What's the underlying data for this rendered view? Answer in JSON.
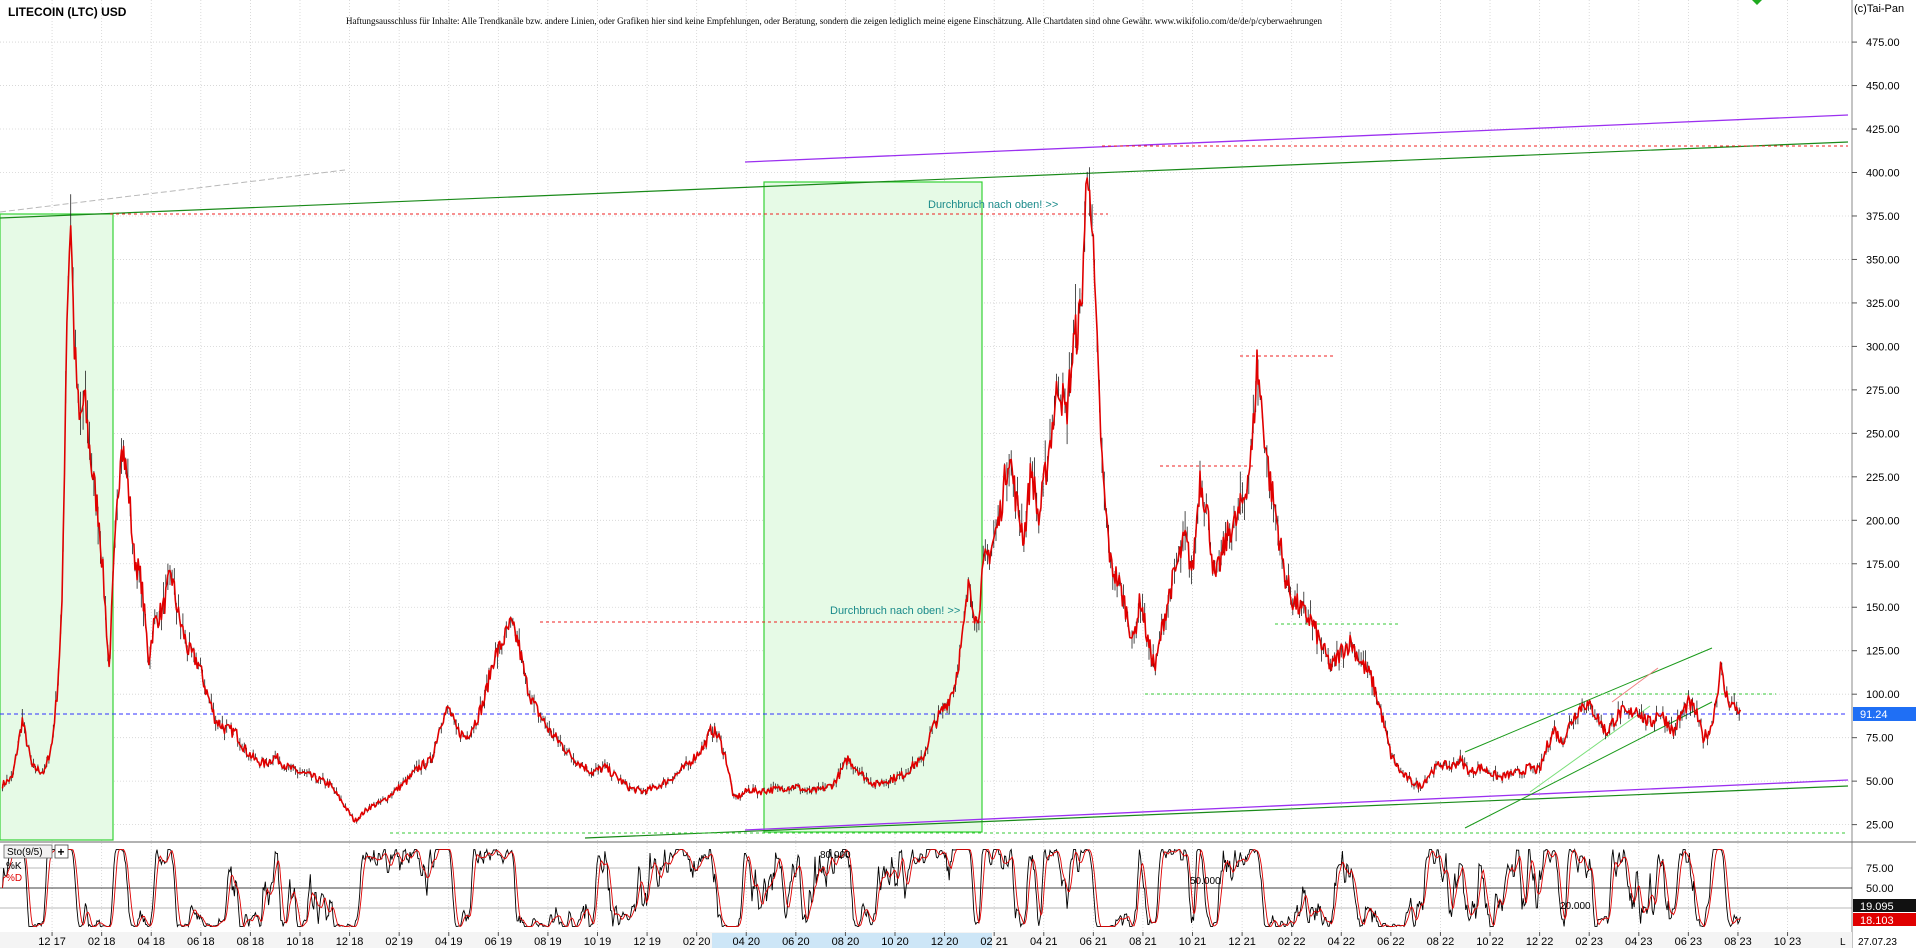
{
  "header": {
    "title": "LITECOIN (LTC) USD",
    "disclaimer": "Haftungsausschluss für Inhalte: Alle Trendkanäle bzw. andere Linien, oder Grafiken hier sind keine Empfehlungen, oder Beratung, sondern die zeigen lediglich meine eigene Einschätzung. Alle Chartdaten sind ohne Gewähr.  www.wikifolio.com/de/de/p/cyberwaehrungen",
    "copyright": "(c)Tai-Pan"
  },
  "chart_data": [
    {
      "type": "line",
      "title": "LITECOIN (LTC) USD",
      "y_ticks": [
        25,
        50,
        75,
        100,
        125,
        150,
        175,
        200,
        225,
        250,
        275,
        300,
        325,
        350,
        375,
        400,
        425,
        450,
        475
      ],
      "y_tick_labels": [
        "25.00",
        "50.00",
        "75.00",
        "100.00",
        "125.00",
        "150.00",
        "175.00",
        "200.00",
        "225.00",
        "250.00",
        "275.00",
        "300.00",
        "325.00",
        "350.00",
        "375.00",
        "400.00",
        "425.00",
        "450.00",
        "475.00"
      ],
      "ylim": [
        15,
        490
      ],
      "x_tick_labels": [
        "12 17",
        "02 18",
        "04 18",
        "06 18",
        "08 18",
        "10 18",
        "12 18",
        "02 19",
        "04 19",
        "06 19",
        "08 19",
        "10 19",
        "12 19",
        "02 20",
        "04 20",
        "06 20",
        "08 20",
        "10 20",
        "12 20",
        "02 21",
        "04 21",
        "06 21",
        "08 21",
        "10 21",
        "12 21",
        "02 22",
        "04 22",
        "06 22",
        "08 22",
        "10 22",
        "12 22",
        "02 23",
        "04 23",
        "06 23",
        "08 23",
        "10 23"
      ],
      "x_tick_index": [
        0,
        2,
        4,
        6,
        8,
        10,
        12,
        14,
        16,
        18,
        20,
        22,
        24,
        26,
        28,
        30,
        32,
        34,
        36,
        38,
        40,
        42,
        44,
        46,
        48,
        50,
        52,
        54,
        56,
        58,
        60,
        62,
        64,
        66,
        68,
        70
      ],
      "xlim_months": [
        -2.1,
        72.6
      ],
      "last_date": "27.07.23",
      "last_price": "91.24",
      "grid": true,
      "series": [
        {
          "color": "#e00000",
          "points": [
            [
              -2,
              48
            ],
            [
              -1.6,
              52
            ],
            [
              -1.2,
              85
            ],
            [
              -0.8,
              58
            ],
            [
              -0.3,
              55
            ],
            [
              0,
              72
            ],
            [
              0.2,
              100
            ],
            [
              0.4,
              148
            ],
            [
              0.6,
              320
            ],
            [
              0.75,
              375
            ],
            [
              0.9,
              300
            ],
            [
              1.1,
              255
            ],
            [
              1.3,
              270
            ],
            [
              1.6,
              230
            ],
            [
              1.9,
              200
            ],
            [
              2.1,
              160
            ],
            [
              2.3,
              115
            ],
            [
              2.5,
              175
            ],
            [
              2.8,
              250
            ],
            [
              3.1,
              215
            ],
            [
              3.3,
              180
            ],
            [
              3.6,
              165
            ],
            [
              3.9,
              120
            ],
            [
              4.1,
              140
            ],
            [
              4.5,
              150
            ],
            [
              4.8,
              170
            ],
            [
              5.1,
              145
            ],
            [
              5.5,
              125
            ],
            [
              5.9,
              118
            ],
            [
              6.2,
              103
            ],
            [
              6.6,
              85
            ],
            [
              7.0,
              80
            ],
            [
              7.4,
              78
            ],
            [
              7.8,
              68
            ],
            [
              8.2,
              62
            ],
            [
              8.6,
              60
            ],
            [
              9.0,
              64
            ],
            [
              9.5,
              58
            ],
            [
              10,
              55
            ],
            [
              10.6,
              52
            ],
            [
              11.2,
              48
            ],
            [
              11.7,
              38
            ],
            [
              12.2,
              27
            ],
            [
              12.5,
              31
            ],
            [
              12.8,
              35
            ],
            [
              13.3,
              38
            ],
            [
              13.8,
              44
            ],
            [
              14.3,
              50
            ],
            [
              14.8,
              58
            ],
            [
              15.3,
              62
            ],
            [
              15.7,
              85
            ],
            [
              16.0,
              92
            ],
            [
              16.3,
              80
            ],
            [
              16.7,
              75
            ],
            [
              17.1,
              85
            ],
            [
              17.4,
              95
            ],
            [
              17.8,
              120
            ],
            [
              18.1,
              128
            ],
            [
              18.5,
              140
            ],
            [
              18.8,
              130
            ],
            [
              19.1,
              108
            ],
            [
              19.4,
              95
            ],
            [
              19.8,
              85
            ],
            [
              20.1,
              78
            ],
            [
              20.5,
              72
            ],
            [
              20.9,
              65
            ],
            [
              21.3,
              60
            ],
            [
              21.8,
              55
            ],
            [
              22.3,
              58
            ],
            [
              22.8,
              52
            ],
            [
              23.3,
              46
            ],
            [
              23.8,
              44
            ],
            [
              24.3,
              46
            ],
            [
              24.8,
              50
            ],
            [
              25.3,
              55
            ],
            [
              25.8,
              62
            ],
            [
              26.3,
              70
            ],
            [
              26.6,
              80
            ],
            [
              26.9,
              75
            ],
            [
              27.2,
              62
            ],
            [
              27.5,
              40
            ],
            [
              27.8,
              42
            ],
            [
              28.1,
              45
            ],
            [
              28.5,
              44
            ],
            [
              29,
              45
            ],
            [
              29.5,
              46
            ],
            [
              30,
              47
            ],
            [
              30.5,
              44
            ],
            [
              31,
              45
            ],
            [
              31.5,
              48
            ],
            [
              31.8,
              55
            ],
            [
              32.1,
              63
            ],
            [
              32.4,
              58
            ],
            [
              32.8,
              52
            ],
            [
              33.2,
              48
            ],
            [
              33.6,
              50
            ],
            [
              34.0,
              52
            ],
            [
              34.4,
              54
            ],
            [
              34.8,
              60
            ],
            [
              35.1,
              62
            ],
            [
              35.5,
              80
            ],
            [
              35.8,
              88
            ],
            [
              36.1,
              95
            ],
            [
              36.4,
              105
            ],
            [
              36.7,
              130
            ],
            [
              37.0,
              165
            ],
            [
              37.3,
              140
            ],
            [
              37.6,
              175
            ],
            [
              37.9,
              185
            ],
            [
              38.2,
              200
            ],
            [
              38.6,
              240
            ],
            [
              38.9,
              210
            ],
            [
              39.2,
              190
            ],
            [
              39.5,
              230
            ],
            [
              39.8,
              200
            ],
            [
              40.1,
              230
            ],
            [
              40.3,
              250
            ],
            [
              40.6,
              280
            ],
            [
              40.9,
              260
            ],
            [
              41.2,
              300
            ],
            [
              41.5,
              320
            ],
            [
              41.7,
              385
            ],
            [
              41.85,
              405
            ],
            [
              42.0,
              350
            ],
            [
              42.2,
              280
            ],
            [
              42.4,
              220
            ],
            [
              42.7,
              175
            ],
            [
              43.0,
              165
            ],
            [
              43.3,
              150
            ],
            [
              43.6,
              130
            ],
            [
              43.9,
              155
            ],
            [
              44.2,
              130
            ],
            [
              44.5,
              115
            ],
            [
              44.8,
              140
            ],
            [
              45.1,
              160
            ],
            [
              45.4,
              175
            ],
            [
              45.7,
              190
            ],
            [
              46.0,
              170
            ],
            [
              46.3,
              225
            ],
            [
              46.6,
              205
            ],
            [
              46.9,
              165
            ],
            [
              47.2,
              180
            ],
            [
              47.5,
              195
            ],
            [
              47.8,
              200
            ],
            [
              48.1,
              215
            ],
            [
              48.4,
              240
            ],
            [
              48.6,
              290
            ],
            [
              48.9,
              250
            ],
            [
              49.1,
              225
            ],
            [
              49.4,
              200
            ],
            [
              49.7,
              170
            ],
            [
              50.0,
              155
            ],
            [
              50.4,
              148
            ],
            [
              50.8,
              142
            ],
            [
              51.2,
              128
            ],
            [
              51.6,
              115
            ],
            [
              52.0,
              125
            ],
            [
              52.4,
              130
            ],
            [
              52.8,
              118
            ],
            [
              53.2,
              110
            ],
            [
              53.6,
              90
            ],
            [
              54.0,
              65
            ],
            [
              54.4,
              55
            ],
            [
              54.8,
              50
            ],
            [
              55.2,
              47
            ],
            [
              55.6,
              55
            ],
            [
              56.0,
              60
            ],
            [
              56.4,
              58
            ],
            [
              56.8,
              62
            ],
            [
              57.2,
              55
            ],
            [
              57.6,
              58
            ],
            [
              58.0,
              55
            ],
            [
              58.4,
              52
            ],
            [
              58.8,
              54
            ],
            [
              59.2,
              55
            ],
            [
              59.6,
              58
            ],
            [
              60.0,
              56
            ],
            [
              60.3,
              70
            ],
            [
              60.6,
              80
            ],
            [
              60.9,
              72
            ],
            [
              61.2,
              82
            ],
            [
              61.5,
              90
            ],
            [
              61.8,
              95
            ],
            [
              62.1,
              92
            ],
            [
              62.4,
              85
            ],
            [
              62.7,
              78
            ],
            [
              63.0,
              85
            ],
            [
              63.3,
              90
            ],
            [
              63.6,
              88
            ],
            [
              63.9,
              92
            ],
            [
              64.2,
              86
            ],
            [
              64.5,
              83
            ],
            [
              64.8,
              90
            ],
            [
              65.1,
              85
            ],
            [
              65.4,
              78
            ],
            [
              65.7,
              88
            ],
            [
              66.0,
              95
            ],
            [
              66.3,
              90
            ],
            [
              66.6,
              75
            ],
            [
              66.9,
              80
            ],
            [
              67.1,
              95
            ],
            [
              67.3,
              115
            ],
            [
              67.5,
              100
            ],
            [
              67.7,
              95
            ],
            [
              67.9,
              92
            ],
            [
              68.1,
              91
            ]
          ]
        }
      ],
      "annotations": [
        {
          "text": "Durchbruch nach oben! >>",
          "month": 32,
          "y": 144
        },
        {
          "text": "Durchbruch nach oben! >>",
          "month": 37.2,
          "y": 380
        }
      ],
      "indicators": [
        {
          "text": "80.000",
          "month": 31,
          "level": 80
        },
        {
          "text": "50.000",
          "month": 45.5,
          "level": 50
        },
        {
          "text": "20.000",
          "month": 59.3,
          "level": 20
        }
      ]
    },
    {
      "type": "line",
      "title": "Sto(9/5)",
      "legend": [
        "%K",
        "%D"
      ],
      "y_ticks": [
        25,
        50,
        75
      ],
      "y_tick_labels": [
        "25.00",
        "50.00",
        "75.00"
      ],
      "ylim": [
        0,
        100
      ],
      "last_k": "19.095",
      "last_d": "18.103",
      "series": [
        {
          "name": "%K",
          "color": "#000000",
          "points_per_month": 5
        },
        {
          "name": "%D",
          "color": "#e00000",
          "points_per_month": 5
        }
      ]
    }
  ],
  "x_axis": {
    "highlight_start": "02 20",
    "highlight_end": "12 20",
    "end_marker": "L"
  }
}
